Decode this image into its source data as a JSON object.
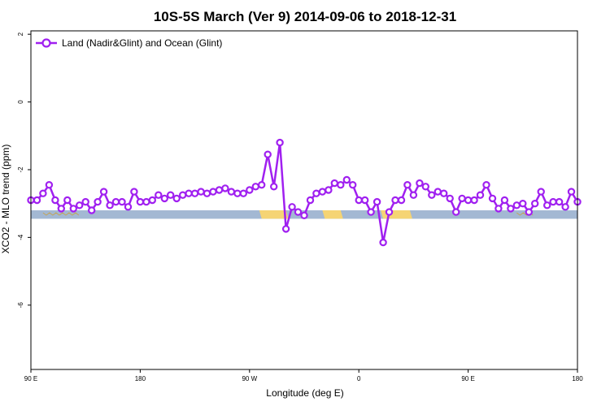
{
  "chart_data": {
    "type": "line",
    "title": "10S-5S March (Ver 9)   2014-09-06 to 2018-12-31",
    "xlabel": "Longitude (deg E)",
    "ylabel": "XCO2 - MLO trend (ppm)",
    "x_ticks": [
      {
        "value": 90,
        "label": "90 E"
      },
      {
        "value": 180,
        "label": "180"
      },
      {
        "value": 270,
        "label": "90 W"
      },
      {
        "value": 360,
        "label": "0"
      },
      {
        "value": 450,
        "label": "90 E"
      },
      {
        "value": 540,
        "label": "180"
      }
    ],
    "y_ticks": [
      {
        "value": 2,
        "label": "2"
      },
      {
        "value": 0,
        "label": "0"
      },
      {
        "value": -2,
        "label": "-2"
      },
      {
        "value": -4,
        "label": "-4"
      },
      {
        "value": -6,
        "label": "-6"
      }
    ],
    "xlim": [
      90,
      540
    ],
    "ylim": [
      -7.9,
      2.1
    ],
    "grid": false,
    "legend_position": "top-left",
    "series": [
      {
        "name": "Land (Nadir&Glint) and Ocean (Glint)",
        "color": "#a020f0",
        "x": [
          90,
          95,
          100,
          105,
          110,
          115,
          120,
          125,
          130,
          135,
          140,
          145,
          150,
          155,
          160,
          165,
          170,
          175,
          180,
          185,
          190,
          195,
          200,
          205,
          210,
          215,
          220,
          225,
          230,
          235,
          240,
          245,
          250,
          255,
          260,
          265,
          270,
          275,
          280,
          285,
          290,
          295,
          300,
          305,
          310,
          315,
          320,
          325,
          330,
          335,
          340,
          345,
          350,
          355,
          360,
          365,
          370,
          375,
          380,
          385,
          390,
          395,
          400,
          405,
          410,
          415,
          420,
          425,
          430,
          435,
          440,
          445,
          450,
          455,
          460,
          465,
          470,
          475,
          480,
          485,
          490,
          495,
          500,
          505,
          510,
          515,
          520,
          525,
          530,
          535,
          540
        ],
        "y": [
          -2.9,
          -2.9,
          -2.7,
          -2.45,
          -2.9,
          -3.15,
          -2.9,
          -3.15,
          -3.05,
          -2.95,
          -3.2,
          -2.95,
          -2.65,
          -3.05,
          -2.95,
          -2.95,
          -3.1,
          -2.65,
          -2.95,
          -2.95,
          -2.9,
          -2.75,
          -2.85,
          -2.75,
          -2.85,
          -2.75,
          -2.7,
          -2.7,
          -2.65,
          -2.7,
          -2.65,
          -2.6,
          -2.55,
          -2.65,
          -2.7,
          -2.7,
          -2.6,
          -2.5,
          -2.45,
          -1.55,
          -2.5,
          -1.2,
          -3.75,
          -3.1,
          -3.25,
          -3.35,
          -2.9,
          -2.7,
          -2.65,
          -2.6,
          -2.4,
          -2.45,
          -2.3,
          -2.45,
          -2.9,
          -2.9,
          -3.25,
          -2.95,
          -4.15,
          -3.25,
          -2.9,
          -2.9,
          -2.45,
          -2.75,
          -2.4,
          -2.5,
          -2.75,
          -2.65,
          -2.7,
          -2.85,
          -3.25,
          -2.85,
          -2.9,
          -2.9,
          -2.75,
          -2.45,
          -2.85,
          -3.15,
          -2.9,
          -3.15,
          -3.05,
          -3.0,
          -3.25,
          -3.0,
          -2.65,
          -3.05,
          -2.95,
          -2.95,
          -3.1,
          -2.65,
          -2.95
        ]
      }
    ]
  },
  "colors": {
    "ocean_band": "#a3b8d3",
    "land_band": "#f5d474",
    "coastline": "#c9a040"
  },
  "land_band": {
    "y_range": [
      -3.45,
      -3.2
    ],
    "land_segments": [
      [
        278,
        300
      ],
      [
        330,
        345
      ],
      [
        378,
        402
      ]
    ]
  }
}
